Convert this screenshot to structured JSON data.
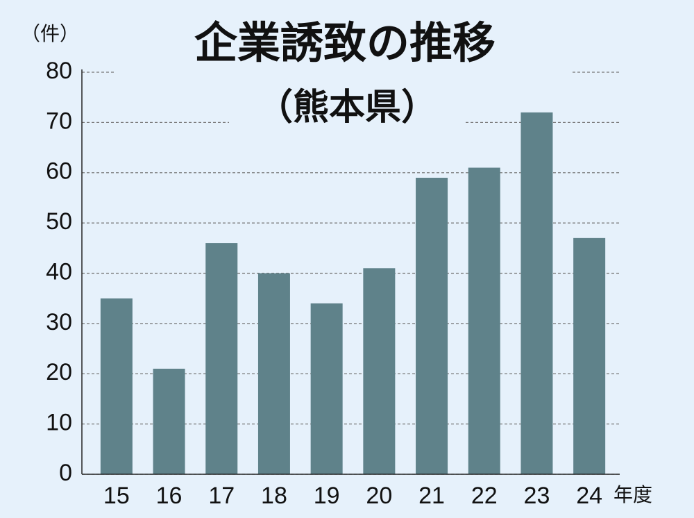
{
  "chart_data": {
    "type": "bar",
    "title": "企業誘致の推移",
    "subtitle": "（熊本県）",
    "y_unit": "（件）",
    "x_unit": "年度",
    "categories": [
      "15",
      "16",
      "17",
      "18",
      "19",
      "20",
      "21",
      "22",
      "23",
      "24"
    ],
    "values": [
      35,
      21,
      46,
      40,
      34,
      41,
      59,
      61,
      72,
      47
    ],
    "color": "#5f828a",
    "ylim": [
      0,
      80
    ],
    "yticks": [
      0,
      10,
      20,
      30,
      40,
      50,
      60,
      70,
      80
    ],
    "grid": true
  }
}
